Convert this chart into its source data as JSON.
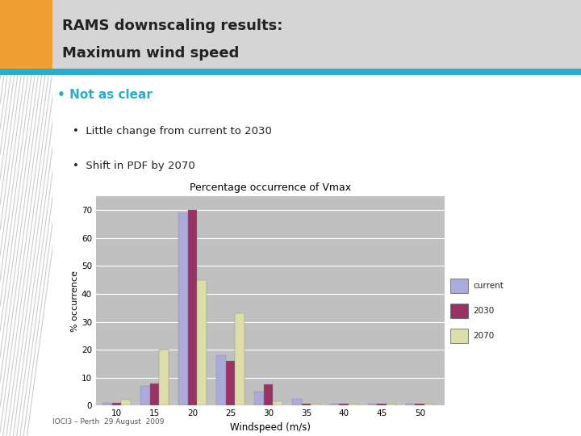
{
  "title_line1": "RAMS downscaling results:",
  "title_line2": "Maximum wind speed",
  "chart_title": "Percentage occurrence of Vmax",
  "xlabel": "Windspeed (m/s)",
  "ylabel": "% occurrence",
  "categories": [
    10,
    15,
    20,
    25,
    30,
    35,
    40,
    45,
    50
  ],
  "current": [
    1,
    7,
    69,
    18,
    5,
    2.5,
    0.5,
    0.5,
    0.5
  ],
  "y2030": [
    1,
    8,
    70,
    16,
    7.5,
    0.5,
    0.5,
    0.5,
    0.5
  ],
  "y2070": [
    2,
    20,
    45,
    33,
    1.5,
    0.5,
    0.5,
    0.5,
    0.5
  ],
  "color_current": "#aaaadd",
  "color_2030": "#993366",
  "color_2070": "#ddddaa",
  "ylim": [
    0,
    75
  ],
  "yticks": [
    0,
    10,
    20,
    30,
    40,
    50,
    60,
    70
  ],
  "slide_bg": "#e8e8e8",
  "title_bg": "#d5d5d5",
  "chart_bg": "#c0c0c0",
  "white_area": "#ffffff",
  "orange_color": "#f0a030",
  "teal_color": "#2aaccc",
  "bullet_main_color": "#2aaccc",
  "bullet_sub_color": "#222222",
  "bullet_main_text": "Not as clear",
  "sub_bullets": [
    "Little change from current to 2030",
    "Shift in PDF by 2070"
  ],
  "footer": "IOCI3 – Perth  29 August  2009",
  "legend_labels": [
    "current",
    "2030",
    "2070"
  ],
  "title_fontsize": 13,
  "bullet_main_fontsize": 11,
  "bullet_sub_fontsize": 9.5
}
